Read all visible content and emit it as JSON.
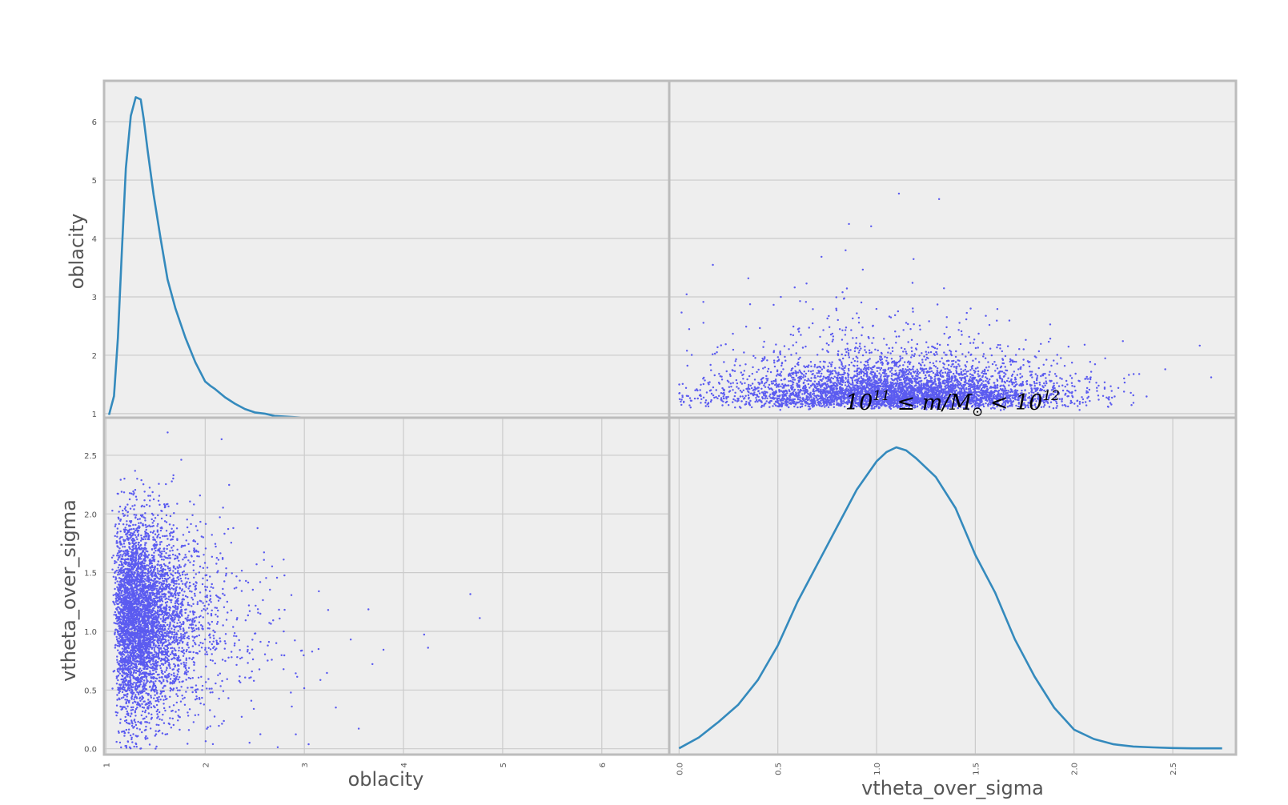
{
  "chart_data": {
    "type": "scatter",
    "layout": "scatter-matrix",
    "title_parts": [
      "10",
      "11",
      " ≤ m/M",
      "⊙",
      " < 10",
      "12"
    ],
    "variables": [
      {
        "name": "oblacity",
        "label": "oblacity",
        "range": [
          0.98,
          6.68
        ],
        "ticks": [
          1,
          2,
          3,
          4,
          5,
          6
        ],
        "tick_labels": [
          "1",
          "2",
          "3",
          "4",
          "5",
          "6"
        ]
      },
      {
        "name": "vtheta_over_sigma",
        "label": "vtheta_over_sigma",
        "range": [
          -0.05,
          2.82
        ],
        "ticks": [
          0.0,
          0.5,
          1.0,
          1.5,
          2.0,
          2.5
        ],
        "tick_labels": [
          "0.0",
          "0.5",
          "1.0",
          "1.5",
          "2.0",
          "2.5"
        ]
      }
    ],
    "y_range_oblacity_panel": [
      0.93,
      6.7
    ],
    "kde_oblacity": {
      "x": [
        1.03,
        1.08,
        1.12,
        1.16,
        1.2,
        1.25,
        1.3,
        1.35,
        1.38,
        1.42,
        1.48,
        1.55,
        1.62,
        1.7,
        1.8,
        1.9,
        2.0,
        2.05,
        2.1,
        2.2,
        2.3,
        2.4,
        2.5,
        2.6,
        2.7,
        2.8,
        3.0,
        3.3,
        3.6,
        4.0,
        4.5,
        5.0,
        5.5,
        6.0,
        6.6
      ],
      "y": [
        0.98,
        1.3,
        2.3,
        3.8,
        5.2,
        6.1,
        6.42,
        6.38,
        6.05,
        5.5,
        4.75,
        4.0,
        3.3,
        2.8,
        2.3,
        1.88,
        1.55,
        1.48,
        1.42,
        1.28,
        1.17,
        1.08,
        1.02,
        1.0,
        0.96,
        0.95,
        0.93,
        0.91,
        0.9,
        0.89,
        0.88,
        0.88,
        0.87,
        0.87,
        0.87
      ]
    },
    "kde_vtheta_over_sigma": {
      "x": [
        0.0,
        0.1,
        0.2,
        0.3,
        0.4,
        0.5,
        0.6,
        0.7,
        0.8,
        0.9,
        1.0,
        1.05,
        1.1,
        1.15,
        1.2,
        1.3,
        1.4,
        1.5,
        1.6,
        1.7,
        1.8,
        1.9,
        2.0,
        2.1,
        2.2,
        2.3,
        2.4,
        2.5,
        2.6,
        2.75
      ],
      "y": [
        0.0,
        0.035,
        0.085,
        0.14,
        0.22,
        0.33,
        0.47,
        0.59,
        0.71,
        0.83,
        0.92,
        0.95,
        0.965,
        0.955,
        0.93,
        0.87,
        0.77,
        0.62,
        0.5,
        0.35,
        0.23,
        0.13,
        0.06,
        0.03,
        0.013,
        0.006,
        0.003,
        0.001,
        0.0,
        0.0
      ]
    },
    "kde_y_max": 1.0,
    "scatter_points": 18000,
    "scatter_color": "#4a4af0",
    "kde_color": "#348abd",
    "grid": true,
    "legend": "none"
  }
}
